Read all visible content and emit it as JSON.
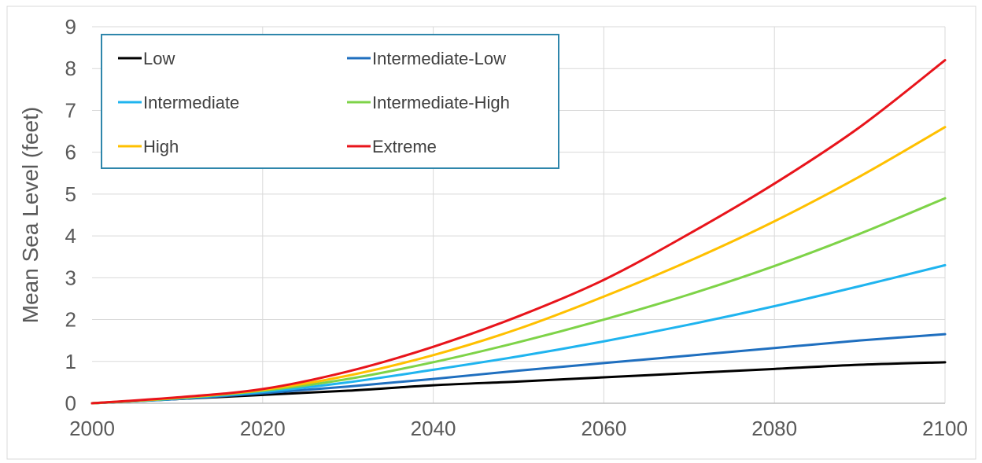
{
  "chart_data": {
    "type": "line",
    "title": "",
    "xlabel": "",
    "ylabel": "Mean Sea Level (feet)",
    "xlim": [
      2000,
      2100
    ],
    "ylim": [
      0,
      9
    ],
    "x_ticks": [
      2000,
      2020,
      2040,
      2060,
      2080,
      2100
    ],
    "y_ticks": [
      0,
      1,
      2,
      3,
      4,
      5,
      6,
      7,
      8,
      9
    ],
    "grid": true,
    "legend_position": "top-left",
    "x": [
      2000,
      2010,
      2020,
      2030,
      2040,
      2050,
      2060,
      2070,
      2080,
      2090,
      2100
    ],
    "series": [
      {
        "name": "Low",
        "color": "#000000",
        "values": [
          0,
          0.1,
          0.2,
          0.3,
          0.43,
          0.52,
          0.62,
          0.72,
          0.82,
          0.92,
          0.98
        ]
      },
      {
        "name": "Intermediate-Low",
        "color": "#1f6fbf",
        "values": [
          0,
          0.1,
          0.24,
          0.4,
          0.58,
          0.78,
          0.96,
          1.14,
          1.32,
          1.5,
          1.65
        ]
      },
      {
        "name": "Intermediate",
        "color": "#1fb4ef",
        "values": [
          0,
          0.11,
          0.27,
          0.5,
          0.8,
          1.12,
          1.48,
          1.88,
          2.32,
          2.8,
          3.3
        ]
      },
      {
        "name": "Intermediate-High",
        "color": "#7ed348",
        "values": [
          0,
          0.12,
          0.3,
          0.58,
          0.98,
          1.46,
          2.0,
          2.6,
          3.28,
          4.05,
          4.9
        ]
      },
      {
        "name": "High",
        "color": "#ffc000",
        "values": [
          0,
          0.13,
          0.32,
          0.66,
          1.15,
          1.78,
          2.55,
          3.4,
          4.35,
          5.42,
          6.6
        ]
      },
      {
        "name": "Extreme",
        "color": "#e8141b",
        "values": [
          0,
          0.14,
          0.34,
          0.76,
          1.35,
          2.08,
          2.95,
          4.05,
          5.25,
          6.6,
          8.2
        ]
      }
    ]
  }
}
